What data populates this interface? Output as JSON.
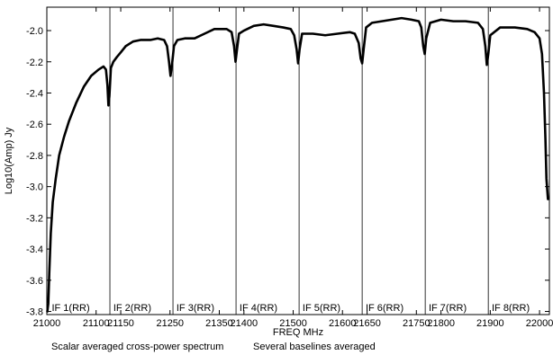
{
  "chart_data": {
    "type": "line",
    "xlabel": "FREQ MHz",
    "ylabel": "Log10(Amp) Jy",
    "xlim": [
      21000,
      22020
    ],
    "ylim": [
      -3.82,
      -1.85
    ],
    "x_ticks": [
      21000,
      21100,
      21150,
      21250,
      21350,
      21400,
      21500,
      21600,
      21650,
      21750,
      21800,
      21900,
      22000
    ],
    "y_ticks": [
      -2.0,
      -2.2,
      -2.4,
      -2.6,
      -2.8,
      -3.0,
      -3.2,
      -3.4,
      -3.6,
      -3.8
    ],
    "if_boundaries": [
      21128,
      21256,
      21384,
      21512,
      21640,
      21768,
      21896
    ],
    "if_labels": [
      {
        "text": "IF 1(RR)",
        "x": 21010
      },
      {
        "text": "IF 2(RR)",
        "x": 21135
      },
      {
        "text": "IF 3(RR)",
        "x": 21263
      },
      {
        "text": "IF 4(RR)",
        "x": 21391
      },
      {
        "text": "IF 5(RR)",
        "x": 21519
      },
      {
        "text": "IF 6(RR)",
        "x": 21647
      },
      {
        "text": "IF 7(RR)",
        "x": 21775
      },
      {
        "text": "IF 8(RR)",
        "x": 21903
      }
    ],
    "series": [
      {
        "points": [
          [
            21001,
            -3.8
          ],
          [
            21003,
            -3.75
          ],
          [
            21005,
            -3.55
          ],
          [
            21008,
            -3.3
          ],
          [
            21012,
            -3.1
          ],
          [
            21018,
            -2.95
          ],
          [
            21025,
            -2.8
          ],
          [
            21035,
            -2.68
          ],
          [
            21045,
            -2.58
          ],
          [
            21060,
            -2.46
          ],
          [
            21075,
            -2.36
          ],
          [
            21090,
            -2.29
          ],
          [
            21105,
            -2.25
          ],
          [
            21115,
            -2.23
          ],
          [
            21120,
            -2.25
          ],
          [
            21123,
            -2.35
          ],
          [
            21125,
            -2.48
          ],
          [
            21127,
            -2.42
          ],
          [
            21130,
            -2.24
          ],
          [
            21135,
            -2.2
          ],
          [
            21142,
            -2.17
          ],
          [
            21150,
            -2.14
          ],
          [
            21160,
            -2.1
          ],
          [
            21175,
            -2.07
          ],
          [
            21190,
            -2.06
          ],
          [
            21210,
            -2.06
          ],
          [
            21225,
            -2.05
          ],
          [
            21238,
            -2.06
          ],
          [
            21244,
            -2.1
          ],
          [
            21248,
            -2.2
          ],
          [
            21251,
            -2.29
          ],
          [
            21254,
            -2.22
          ],
          [
            21258,
            -2.1
          ],
          [
            21265,
            -2.06
          ],
          [
            21280,
            -2.05
          ],
          [
            21300,
            -2.05
          ],
          [
            21320,
            -2.02
          ],
          [
            21340,
            -1.99
          ],
          [
            21365,
            -1.99
          ],
          [
            21375,
            -2.01
          ],
          [
            21380,
            -2.1
          ],
          [
            21383,
            -2.2
          ],
          [
            21386,
            -2.12
          ],
          [
            21390,
            -2.02
          ],
          [
            21400,
            -2.0
          ],
          [
            21420,
            -1.97
          ],
          [
            21440,
            -1.96
          ],
          [
            21460,
            -1.97
          ],
          [
            21480,
            -1.98
          ],
          [
            21495,
            -1.99
          ],
          [
            21502,
            -2.03
          ],
          [
            21507,
            -2.12
          ],
          [
            21510,
            -2.21
          ],
          [
            21513,
            -2.12
          ],
          [
            21518,
            -2.02
          ],
          [
            21540,
            -2.02
          ],
          [
            21565,
            -2.03
          ],
          [
            21590,
            -2.02
          ],
          [
            21615,
            -2.01
          ],
          [
            21625,
            -2.02
          ],
          [
            21633,
            -2.08
          ],
          [
            21637,
            -2.18
          ],
          [
            21640,
            -2.21
          ],
          [
            21643,
            -2.12
          ],
          [
            21648,
            -1.98
          ],
          [
            21660,
            -1.95
          ],
          [
            21680,
            -1.94
          ],
          [
            21700,
            -1.93
          ],
          [
            21720,
            -1.92
          ],
          [
            21740,
            -1.93
          ],
          [
            21755,
            -1.94
          ],
          [
            21760,
            -1.98
          ],
          [
            21764,
            -2.1
          ],
          [
            21767,
            -2.15
          ],
          [
            21770,
            -2.05
          ],
          [
            21778,
            -1.95
          ],
          [
            21800,
            -1.93
          ],
          [
            21825,
            -1.94
          ],
          [
            21850,
            -1.94
          ],
          [
            21875,
            -1.95
          ],
          [
            21885,
            -1.99
          ],
          [
            21890,
            -2.1
          ],
          [
            21893,
            -2.22
          ],
          [
            21896,
            -2.15
          ],
          [
            21900,
            -2.03
          ],
          [
            21920,
            -1.98
          ],
          [
            21950,
            -1.98
          ],
          [
            21975,
            -1.99
          ],
          [
            21990,
            -2.01
          ],
          [
            22000,
            -2.05
          ],
          [
            22005,
            -2.15
          ],
          [
            22009,
            -2.4
          ],
          [
            22012,
            -2.7
          ],
          [
            22014,
            -2.95
          ],
          [
            22017,
            -3.08
          ]
        ]
      }
    ]
  },
  "caption": {
    "left": "Scalar averaged cross-power spectrum",
    "right": "Several baselines averaged"
  }
}
